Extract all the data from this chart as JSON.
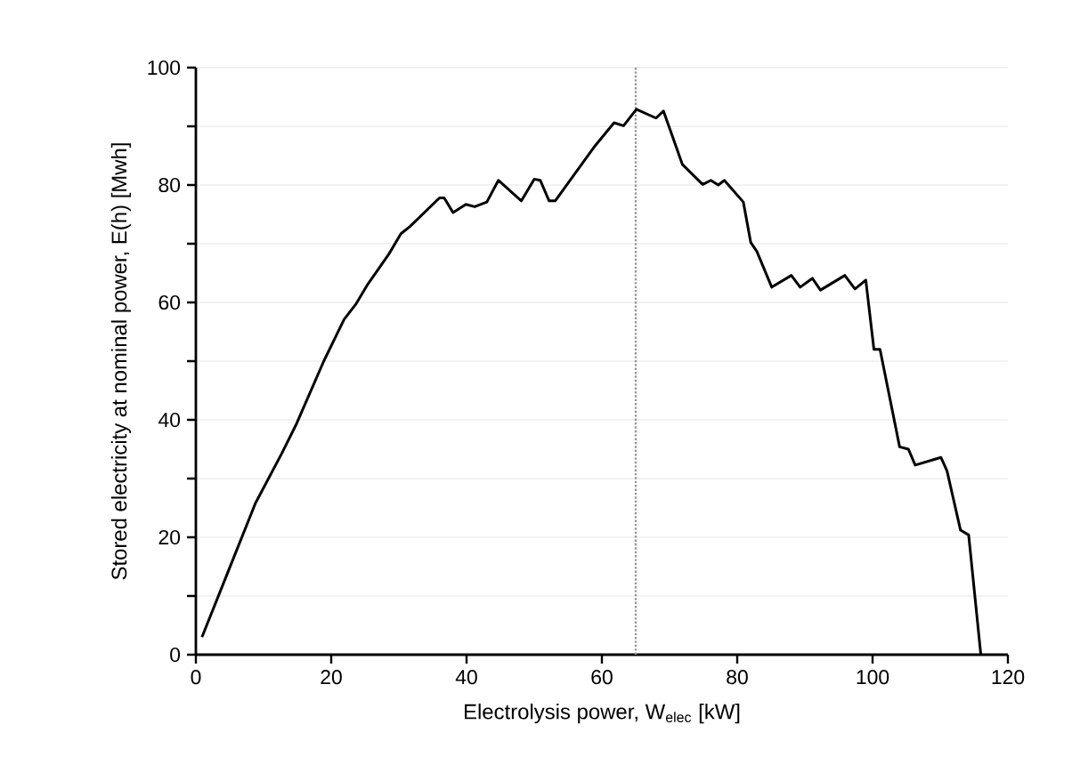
{
  "chart_data": {
    "type": "line",
    "xlabel": "Electrolysis power, W$_{elec}$ [kW]",
    "ylabel": "Stored electricity at nominal power, E(h) [Mwh]",
    "xlim": [
      0,
      120
    ],
    "ylim": [
      0,
      100
    ],
    "xticks": [
      0,
      20,
      40,
      60,
      80,
      100,
      120
    ],
    "yticks": [
      0,
      {
        "value": 10,
        "label": null
      },
      20,
      {
        "value": 30,
        "label": null
      },
      40,
      {
        "value": 50,
        "label": null
      },
      60,
      {
        "value": 70,
        "label": null
      },
      80,
      {
        "value": 90,
        "label": null
      },
      100
    ],
    "grid": "y",
    "marker": "none",
    "line_style": "solid",
    "ref_lines": [
      {
        "axis": "x",
        "value": 65,
        "color": "#999999",
        "line_style": "dotted"
      }
    ],
    "series": [
      {
        "color": "#000000",
        "x": [
          0.9,
          8.8,
          12.7,
          14.9,
          18.9,
          21.9,
          23.7,
          25.4,
          28.5,
          30.3,
          31.6,
          36,
          36.7,
          38,
          39.9,
          41.2,
          43,
          44.7,
          48.1,
          50,
          50.9,
          52.2,
          53.1,
          58.8,
          61.8,
          63.2,
          65.1,
          68,
          69.1,
          71.9,
          74.9,
          76.1,
          77.2,
          78.1,
          80.9,
          82,
          82.9,
          85.1,
          88,
          89.3,
          91.1,
          92.3,
          95.9,
          97.4,
          99,
          100.2,
          101.1,
          104,
          105.3,
          106.3,
          110.1,
          111,
          113,
          114.2,
          116
        ],
        "values": [
          3,
          25.8,
          34.3,
          39.4,
          50,
          57.1,
          59.8,
          63.1,
          68.2,
          71.7,
          72.9,
          77.8,
          77.8,
          75.3,
          76.7,
          76.3,
          77.1,
          80.8,
          77.3,
          81,
          80.8,
          77.3,
          77.3,
          86.4,
          90.6,
          90.1,
          92.9,
          91.4,
          92.6,
          83.5,
          80.1,
          80.8,
          80,
          80.8,
          77.1,
          70.2,
          68.7,
          62.6,
          64.6,
          62.6,
          64.1,
          62.1,
          64.6,
          62.3,
          63.8,
          52,
          52,
          35.4,
          35,
          32.3,
          33.6,
          31.3,
          21.2,
          20.4,
          0
        ]
      }
    ]
  }
}
